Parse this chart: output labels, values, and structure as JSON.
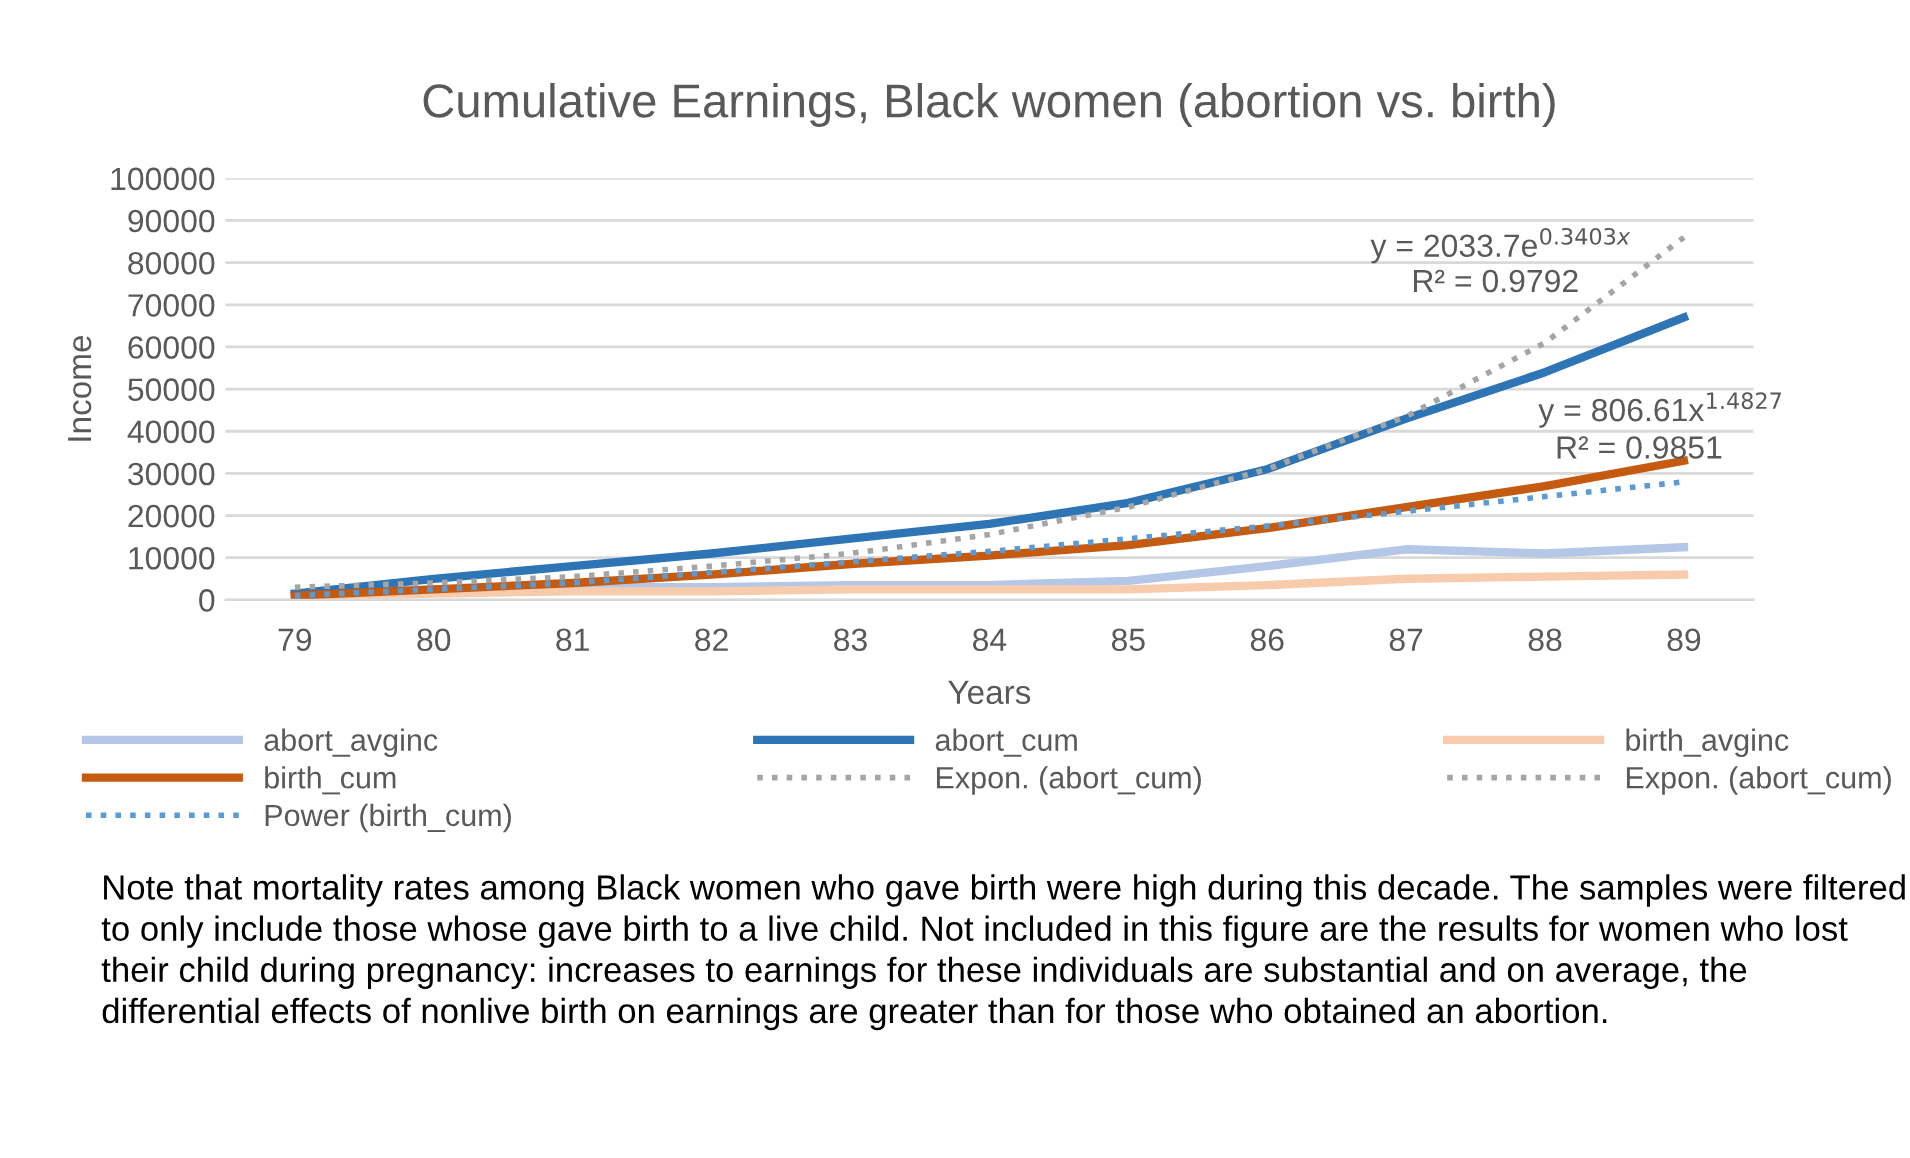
{
  "chart_data": {
    "type": "line",
    "title": "Cumulative Earnings, Black women (abortion vs. birth)",
    "xlabel": "Years",
    "ylabel": "Income",
    "categories": [
      "79",
      "80",
      "81",
      "82",
      "83",
      "84",
      "85",
      "86",
      "87",
      "88",
      "89"
    ],
    "ylim": [
      0,
      100000
    ],
    "yticks": [
      0,
      10000,
      20000,
      30000,
      40000,
      50000,
      60000,
      70000,
      80000,
      90000,
      100000
    ],
    "grid": "y",
    "legend": "bottom",
    "marker": "none",
    "series": [
      {
        "name": "abort_avginc",
        "color": "#b4c7e7",
        "line_style": "solid",
        "values": [
          1000,
          2500,
          3000,
          3000,
          3500,
          3500,
          4500,
          8000,
          12000,
          11000,
          12500
        ]
      },
      {
        "name": "abort_cum",
        "color": "#2e75b6",
        "line_style": "solid",
        "values": [
          1500,
          5000,
          8000,
          11000,
          14500,
          18000,
          23000,
          31000,
          43000,
          54000,
          67000
        ]
      },
      {
        "name": "birth_avginc",
        "color": "#f8cbad",
        "line_style": "solid",
        "values": [
          800,
          1500,
          2000,
          2000,
          2500,
          2500,
          2500,
          3500,
          5000,
          5500,
          6000
        ]
      },
      {
        "name": "birth_cum",
        "color": "#c55a11",
        "line_style": "solid",
        "values": [
          1000,
          2500,
          4000,
          6000,
          8500,
          10500,
          13000,
          17000,
          22000,
          27000,
          33000
        ]
      },
      {
        "name": "Expon. (abort_cum)",
        "color": "#a5a5a5",
        "line_style": "dotted",
        "values": [
          3000,
          4000,
          5500,
          8000,
          11000,
          15500,
          22000,
          31000,
          43500,
          61000,
          86000
        ]
      },
      {
        "name": "Expon. (abort_cum)",
        "color": "#a5a5a5",
        "line_style": "dotted",
        "values": [
          null,
          null,
          null,
          null,
          null,
          null,
          null,
          null,
          null,
          null,
          null
        ]
      },
      {
        "name": "Power (birth_cum)",
        "color": "#5b9bd5",
        "line_style": "dotted",
        "values": [
          1000,
          2500,
          4000,
          6500,
          9000,
          11500,
          14500,
          17500,
          21000,
          24500,
          28000
        ]
      }
    ],
    "annotations": [
      "y = 2033.7e$^{0.3403x}$",
      "R² = 0.9792",
      "y = 806.61x$^{1.4827}$",
      "R² = 0.9851",
      "Note that mortality rates among Black women who gave birth were high during this decade. The samples were filtered to only include those whose gave birth to a live child. Not included in this figure are the results for women who lost their child during pregnancy: increases to earnings for these individuals are substantial and on average, the differential effects of nonlive birth on earnings are greater than for those who obtained an abortion."
    ]
  }
}
